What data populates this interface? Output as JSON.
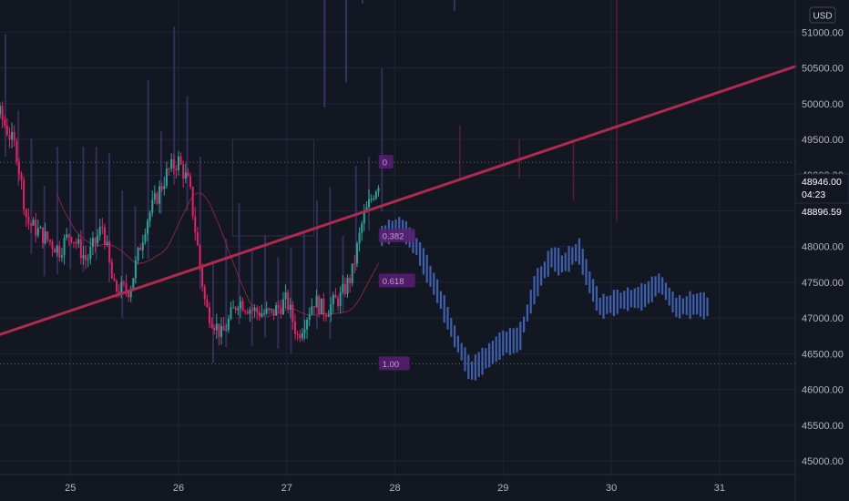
{
  "currency": "USD",
  "colors": {
    "background": "#131722",
    "grid": "#1f2433",
    "candle_up": "#26a69a",
    "candle_down": "#e91e63",
    "projection": "#3d5fae",
    "trendline": "#b0294f",
    "ghost_bars": "#4a3f8c",
    "ghost_red": "#6b1f3a",
    "ma_line": "#8e2846",
    "fib_level": "#9c27b0"
  },
  "price_badges": {
    "current": {
      "price": "48946.00",
      "countdown": "04:23"
    },
    "secondary": {
      "price": "48896.59"
    }
  },
  "fib_labels": [
    {
      "label": "0",
      "price": 49180
    },
    {
      "label": "0.382",
      "price": 48150
    },
    {
      "label": "0.618",
      "price": 47520
    },
    {
      "label": "1.00",
      "price": 46360
    }
  ],
  "chart_data": {
    "type": "candlestick",
    "x_axis": {
      "ticks": [
        "25",
        "26",
        "27",
        "28",
        "29",
        "30",
        "31"
      ],
      "range_days": [
        24.35,
        31.7
      ]
    },
    "y_axis": {
      "ticks": [
        "45000.00",
        "45500.00",
        "46000.00",
        "46500.00",
        "47000.00",
        "47500.00",
        "48000.00",
        "48500.00",
        "49000.00",
        "49500.00",
        "50000.00",
        "50500.00",
        "51000.00"
      ],
      "range": [
        44810,
        51450
      ]
    },
    "trendline": {
      "from": [
        24.35,
        46770
      ],
      "to": [
        31.7,
        50520
      ]
    },
    "dotted_levels": [
      49180,
      46360
    ],
    "anchors": [
      [
        24.35,
        49850
      ],
      [
        24.5,
        49350
      ],
      [
        24.6,
        48350
      ],
      [
        24.75,
        48150
      ],
      [
        24.9,
        47950
      ],
      [
        25.0,
        48200
      ],
      [
        25.15,
        47800
      ],
      [
        25.3,
        48300
      ],
      [
        25.4,
        47400
      ],
      [
        25.55,
        47400
      ],
      [
        25.7,
        48350
      ],
      [
        25.9,
        49050
      ],
      [
        26.0,
        49200
      ],
      [
        26.1,
        48850
      ],
      [
        26.25,
        47150
      ],
      [
        26.4,
        46750
      ],
      [
        26.55,
        47250
      ],
      [
        26.7,
        47100
      ],
      [
        26.85,
        47050
      ],
      [
        27.0,
        47250
      ],
      [
        27.1,
        46750
      ],
      [
        27.25,
        47250
      ],
      [
        27.35,
        47100
      ],
      [
        27.5,
        47300
      ],
      [
        27.6,
        47600
      ],
      [
        27.7,
        48350
      ],
      [
        27.8,
        48750
      ],
      [
        27.86,
        48946
      ]
    ],
    "projection": [
      [
        27.88,
        48150
      ],
      [
        28.05,
        48300
      ],
      [
        28.2,
        48000
      ],
      [
        28.4,
        47350
      ],
      [
        28.55,
        46750
      ],
      [
        28.7,
        46250
      ],
      [
        28.85,
        46450
      ],
      [
        29.0,
        46650
      ],
      [
        29.15,
        46700
      ],
      [
        29.3,
        47450
      ],
      [
        29.45,
        47850
      ],
      [
        29.55,
        47750
      ],
      [
        29.7,
        47950
      ],
      [
        29.8,
        47500
      ],
      [
        29.9,
        47150
      ],
      [
        30.1,
        47250
      ],
      [
        30.3,
        47300
      ],
      [
        30.45,
        47500
      ],
      [
        30.6,
        47150
      ],
      [
        30.8,
        47200
      ],
      [
        30.9,
        47150
      ]
    ]
  }
}
